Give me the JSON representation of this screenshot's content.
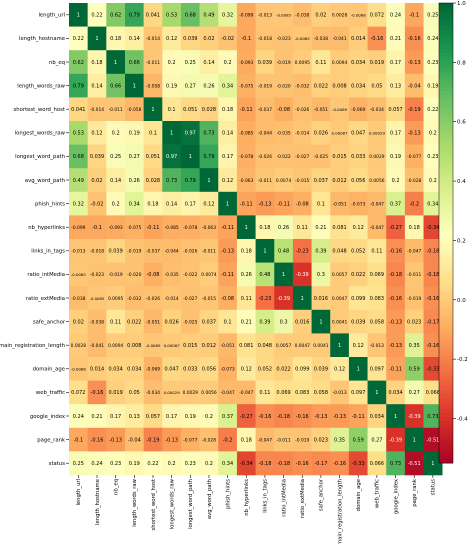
{
  "chart_data": {
    "type": "heatmap",
    "title": "",
    "labels": [
      "length_url",
      "length_hostname",
      "nb_eq",
      "length_words_raw",
      "shortest_word_host",
      "longest_words_raw",
      "longest_word_path",
      "avg_word_path",
      "phish_hints",
      "nb_hyperlinks",
      "links_in_tags",
      "ratio_intMedia",
      "ratio_extMedia",
      "safe_anchor",
      "domain_registration_length",
      "domain_age",
      "web_traffic",
      "google_index",
      "page_rank",
      "status"
    ],
    "cells": [
      [
        "1",
        "0.22",
        "0.62",
        "0.79",
        "0.041",
        "0.53",
        "0.68",
        "0.49",
        "0.32",
        "-0.099",
        "-0.013",
        "-0.0085",
        "-0.038",
        "0.02",
        "0.0028",
        "-0.0068",
        "0.072",
        "0.24",
        "-0.1",
        "0.25"
      ],
      [
        "0.22",
        "1",
        "0.18",
        "0.14",
        "-0.014",
        "0.12",
        "0.039",
        "0.02",
        "-0.02",
        "-0.1",
        "-0.018",
        "-0.023",
        "-0.0085",
        "-0.038",
        "-0.041",
        "0.014",
        "-0.16",
        "0.21",
        "-0.16",
        "0.24"
      ],
      [
        "0.62",
        "0.18",
        "1",
        "0.66",
        "-0.011",
        "0.2",
        "0.25",
        "0.14",
        "0.2",
        "-0.093",
        "0.039",
        "-0.019",
        "0.0095",
        "0.11",
        "0.0094",
        "0.034",
        "0.019",
        "0.17",
        "-0.13",
        "0.23"
      ],
      [
        "0.79",
        "0.14",
        "0.66",
        "1",
        "-0.058",
        "0.19",
        "0.27",
        "0.26",
        "0.34",
        "-0.075",
        "-0.019",
        "-0.020",
        "-0.032",
        "0.022",
        "0.008",
        "0.034",
        "0.05",
        "0.13",
        "-0.04",
        "0.19"
      ],
      [
        "0.041",
        "-0.014",
        "-0.011",
        "-0.058",
        "1",
        "0.1",
        "0.051",
        "0.028",
        "0.18",
        "-0.11",
        "-0.037",
        "-0.08",
        "-0.026",
        "-0.051",
        "-0.0069",
        "-0.069",
        "-0.034",
        "0.057",
        "-0.19",
        "0.22"
      ],
      [
        "0.53",
        "0.12",
        "0.2",
        "0.19",
        "0.1",
        "1",
        "0.97",
        "0.73",
        "0.14",
        "-0.085",
        "-0.044",
        "-0.035",
        "-0.014",
        "0.026",
        "0.00087",
        "0.047",
        "0.00029",
        "0.17",
        "-0.13",
        "0.2"
      ],
      [
        "0.68",
        "0.039",
        "0.25",
        "0.27",
        "0.051",
        "0.97",
        "1",
        "0.79",
        "0.17",
        "-0.078",
        "-0.026",
        "-0.022",
        "-0.027",
        "-0.025",
        "0.015",
        "0.033",
        "0.0029",
        "0.19",
        "-0.077",
        "0.23"
      ],
      [
        "0.49",
        "0.02",
        "0.14",
        "0.26",
        "0.028",
        "0.73",
        "0.79",
        "1",
        "0.12",
        "-0.063",
        "-0.011",
        "0.0074",
        "-0.015",
        "0.037",
        "0.012",
        "0.056",
        "0.0056",
        "0.2",
        "-0.028",
        "0.2"
      ],
      [
        "0.32",
        "-0.02",
        "0.2",
        "0.34",
        "0.18",
        "0.14",
        "0.17",
        "0.12",
        "1",
        "-0.11",
        "-0.13",
        "-0.11",
        "-0.08",
        "0.1",
        "-0.051",
        "-0.073",
        "-0.047",
        "0.37",
        "-0.2",
        "0.34"
      ],
      [
        "-0.099",
        "-0.1",
        "-0.093",
        "-0.075",
        "-0.11",
        "-0.085",
        "-0.078",
        "-0.063",
        "-0.11",
        "1",
        "0.18",
        "0.26",
        "0.11",
        "0.21",
        "0.081",
        "0.12",
        "-0.047",
        "-0.27",
        "0.18",
        "-0.34"
      ],
      [
        "-0.013",
        "-0.018",
        "0.039",
        "-0.019",
        "-0.037",
        "-0.044",
        "-0.026",
        "-0.011",
        "-0.13",
        "0.18",
        "1",
        "0.48",
        "-0.23",
        "0.39",
        "0.048",
        "0.052",
        "0.11",
        "-0.16",
        "-0.047",
        "-0.18"
      ],
      [
        "-0.0085",
        "-0.023",
        "-0.019",
        "-0.020",
        "-0.08",
        "-0.035",
        "-0.022",
        "0.0074",
        "-0.11",
        "0.26",
        "0.48",
        "1",
        "-0.39",
        "0.3",
        "0.0057",
        "0.022",
        "0.069",
        "-0.18",
        "-0.011",
        "-0.18"
      ],
      [
        "-0.038",
        "-0.0085",
        "0.0095",
        "-0.032",
        "-0.026",
        "-0.014",
        "-0.027",
        "-0.015",
        "-0.08",
        "0.11",
        "-0.23",
        "-0.39",
        "1",
        "0.016",
        "0.0047",
        "0.099",
        "0.083",
        "-0.16",
        "-0.019",
        "-0.16"
      ],
      [
        "0.02",
        "-0.038",
        "0.11",
        "0.022",
        "-0.051",
        "0.026",
        "-0.025",
        "0.037",
        "0.1",
        "0.21",
        "0.39",
        "0.3",
        "0.016",
        "1",
        "0.0041",
        "0.039",
        "0.058",
        "-0.13",
        "0.023",
        "-0.17"
      ],
      [
        "0.0028",
        "-0.041",
        "0.0094",
        "0.008",
        "-0.0069",
        "0.00087",
        "0.015",
        "0.012",
        "-0.051",
        "0.081",
        "0.048",
        "0.0057",
        "0.0047",
        "0.0041",
        "1",
        "0.12",
        "-0.013",
        "-0.13",
        "0.35",
        "-0.16"
      ],
      [
        "-0.0068",
        "0.014",
        "0.034",
        "0.034",
        "-0.069",
        "0.047",
        "0.033",
        "0.056",
        "-0.073",
        "0.12",
        "0.052",
        "0.022",
        "0.099",
        "0.039",
        "0.12",
        "1",
        "0.097",
        "-0.11",
        "0.59",
        "-0.33"
      ],
      [
        "0.072",
        "-0.16",
        "0.019",
        "0.05",
        "-0.034",
        "0.00029",
        "0.0029",
        "0.0056",
        "-0.047",
        "-0.047",
        "0.11",
        "0.069",
        "0.083",
        "0.058",
        "-0.013",
        "0.097",
        "1",
        "0.034",
        "0.27",
        "0.066"
      ],
      [
        "0.24",
        "0.21",
        "0.17",
        "0.13",
        "0.057",
        "0.17",
        "0.19",
        "0.2",
        "0.37",
        "-0.27",
        "-0.16",
        "-0.18",
        "-0.16",
        "-0.13",
        "-0.13",
        "-0.11",
        "0.034",
        "1",
        "-0.39",
        "0.73"
      ],
      [
        "-0.1",
        "-0.16",
        "-0.13",
        "-0.04",
        "-0.19",
        "-0.13",
        "-0.077",
        "-0.028",
        "-0.2",
        "0.18",
        "-0.047",
        "-0.011",
        "-0.019",
        "0.023",
        "0.35",
        "0.59",
        "0.27",
        "-0.39",
        "1",
        "-0.51"
      ],
      [
        "0.25",
        "0.24",
        "0.23",
        "0.19",
        "0.22",
        "0.2",
        "0.23",
        "0.2",
        "0.34",
        "-0.34",
        "-0.18",
        "-0.18",
        "-0.16",
        "-0.17",
        "-0.16",
        "-0.33",
        "0.066",
        "0.73",
        "-0.51",
        "1"
      ]
    ],
    "colormap": "RdYlGn",
    "vmin": -0.55,
    "vmax": 1.0,
    "colorbar_ticks": [
      "1.0",
      "0.8",
      "0.6",
      "0.4",
      "0.2",
      "0.0",
      "-0.2",
      "-0.4"
    ],
    "colors": {
      "low": "#a50026",
      "mid": "#ffffbf",
      "high": "#006837"
    }
  }
}
